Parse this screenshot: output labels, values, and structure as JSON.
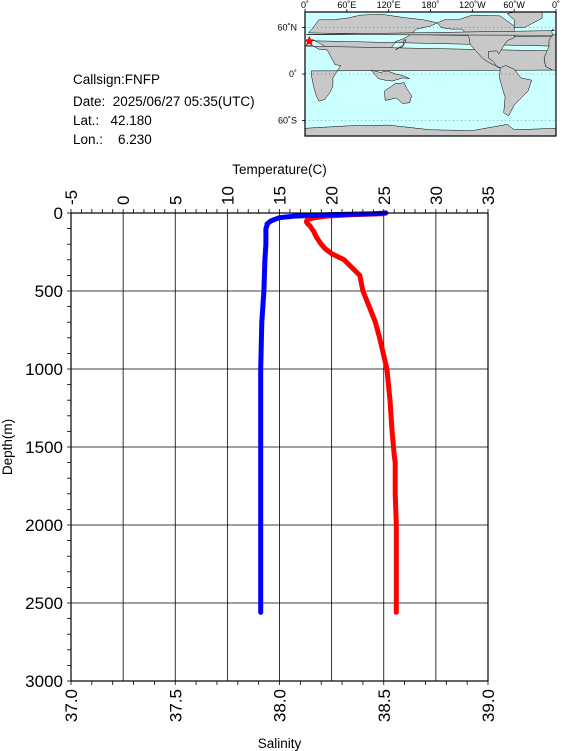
{
  "info": {
    "callsign": "Callsign:FNFP",
    "date": "Date:  2025/06/27 05:35(UTC)",
    "lat": "Lat.:   42.180",
    "lon": "Lon.:    6.230"
  },
  "map": {
    "top_ticks": [
      "0˚",
      "60˚E",
      "120˚E",
      "180˚",
      "120˚W",
      "60˚W",
      "0˚"
    ],
    "left_ticks": [
      "60˚N",
      "0˚",
      "60˚S"
    ],
    "marker_lat": 42.18,
    "marker_lon": 6.23,
    "colors": {
      "ocean": "#ccffff",
      "land": "#c8c8c8",
      "marker": "#ff0000"
    }
  },
  "chart_data": {
    "type": "line",
    "ylabel": "Depth(m)",
    "xlabel_top": "Temperature(C)",
    "xlabel_bottom": "Salinity",
    "ylim": [
      0,
      3000
    ],
    "y_inverted": true,
    "y_ticks": [
      "0",
      "500",
      "1000",
      "1500",
      "2000",
      "2500",
      "3000"
    ],
    "temp_lim": [
      -5,
      35
    ],
    "temp_ticks": [
      "-5",
      "0",
      "5",
      "10",
      "15",
      "20",
      "25",
      "30",
      "35"
    ],
    "sal_lim": [
      37.0,
      39.0
    ],
    "sal_ticks": [
      "37.0",
      "37.5",
      "38.0",
      "38.5",
      "39.0"
    ],
    "grid": true,
    "series": [
      {
        "axis": "temperature",
        "color": "#ff0000",
        "depth": [
          0,
          5,
          10,
          20,
          30,
          40,
          50,
          60,
          70,
          80,
          100,
          120,
          150,
          180,
          200,
          230,
          260,
          300,
          400,
          500,
          600,
          700,
          800,
          1000,
          1200,
          1400,
          1550,
          1600,
          1800,
          2000,
          2200,
          2400,
          2560
        ],
        "values": [
          25.2,
          24.8,
          22.0,
          19.5,
          18.4,
          17.8,
          17.6,
          17.6,
          17.7,
          17.9,
          18.1,
          18.3,
          18.5,
          18.8,
          19.0,
          19.4,
          20.0,
          21.2,
          22.7,
          23.0,
          23.6,
          24.2,
          24.6,
          25.3,
          25.6,
          25.8,
          26.0,
          26.1,
          26.1,
          26.2,
          26.2,
          26.2,
          26.2
        ]
      },
      {
        "axis": "salinity",
        "color": "#0000ff",
        "depth": [
          0,
          5,
          10,
          20,
          30,
          40,
          50,
          60,
          70,
          80,
          100,
          200,
          300,
          500,
          700,
          1000,
          1500,
          2000,
          2500,
          2560
        ],
        "values": [
          38.51,
          38.45,
          38.25,
          38.07,
          38.0,
          37.98,
          37.96,
          37.95,
          37.94,
          37.94,
          37.935,
          37.935,
          37.93,
          37.925,
          37.915,
          37.91,
          37.91,
          37.91,
          37.91,
          37.91
        ]
      }
    ]
  }
}
